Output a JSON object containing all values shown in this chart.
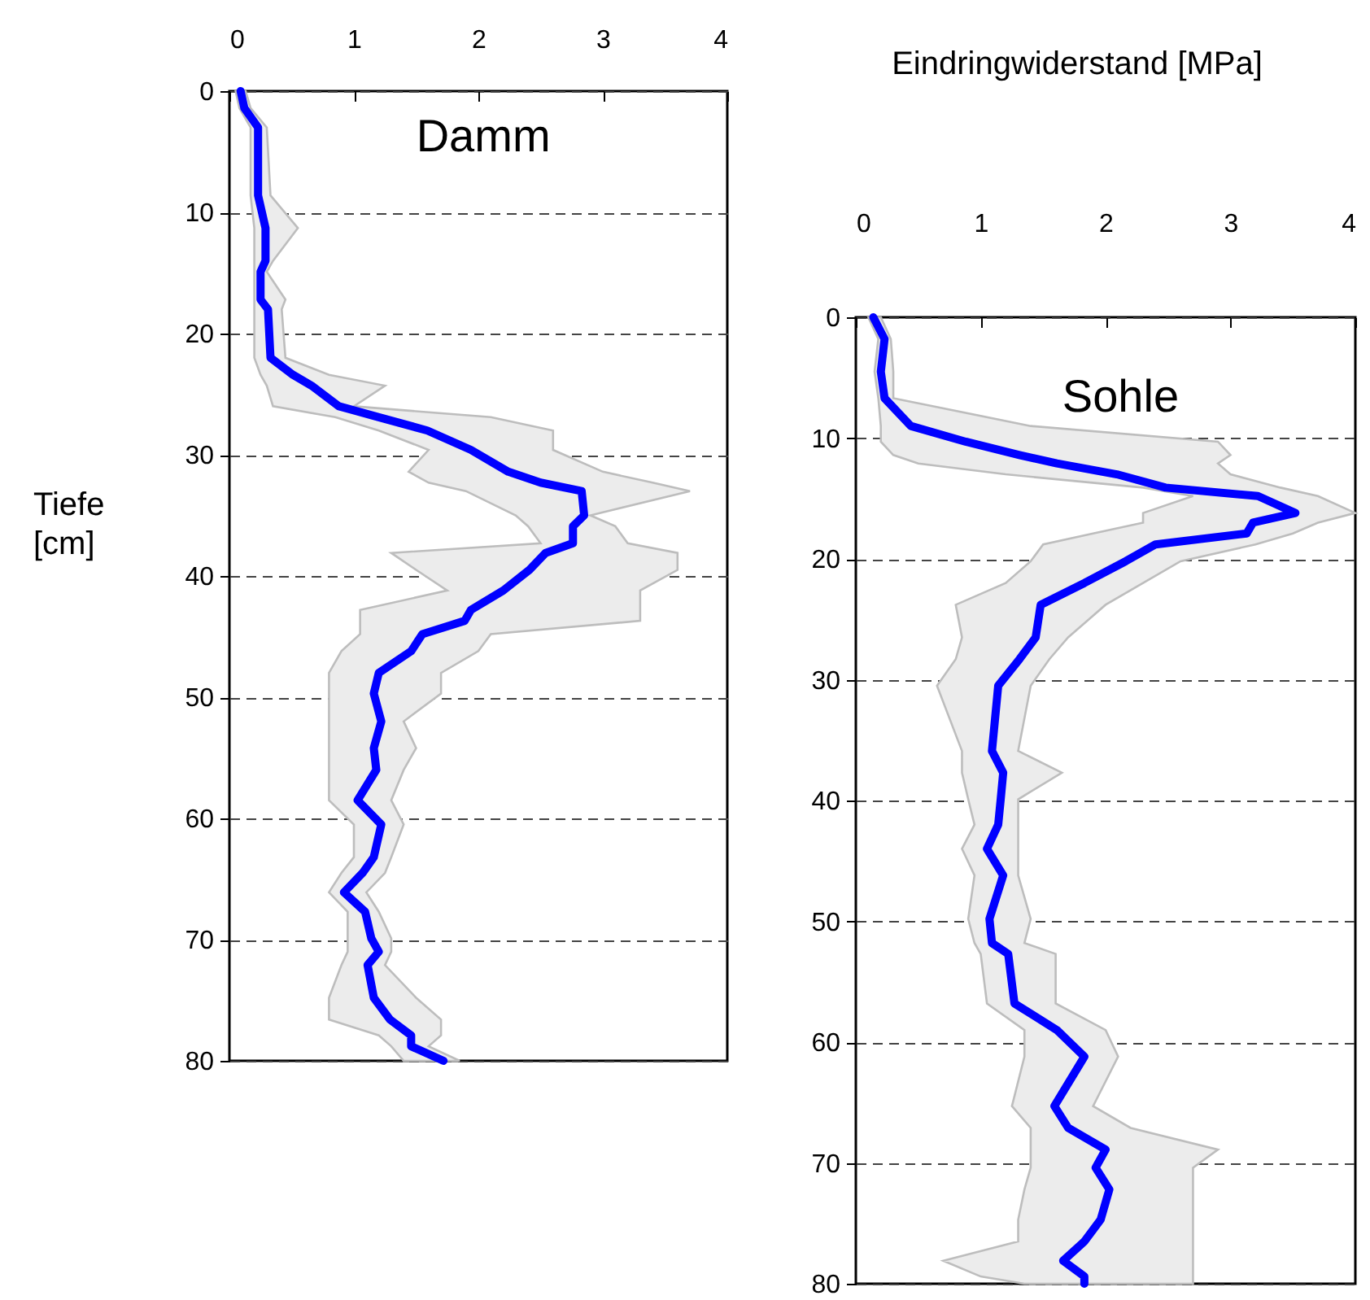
{
  "chart_data": [
    {
      "type": "line",
      "title": "Damm",
      "ylabel": "Tiefe [cm]",
      "orientation": "horizontal",
      "x": [
        0,
        1.4,
        3,
        8.6,
        11.3,
        14,
        14.9,
        17.2,
        18,
        22,
        23.4,
        24.3,
        26,
        26.9,
        28,
        29.6,
        31.4,
        32.3,
        33,
        35,
        35.9,
        37.3,
        38.1,
        39.5,
        41.2,
        42.8,
        43.7,
        44.8,
        46.2,
        48,
        49.7,
        52,
        54.2,
        56,
        58.5,
        60.5,
        63.2,
        64.5,
        66.1,
        67.7,
        69.9,
        71,
        72.1,
        74.8,
        76.6,
        77.9,
        78.8,
        80
      ],
      "series": [
        {
          "color": "#0000ff",
          "values": [
            0.09,
            0.12,
            0.23,
            0.23,
            0.29,
            0.29,
            0.25,
            0.25,
            0.31,
            0.33,
            0.51,
            0.66,
            0.88,
            1.2,
            1.59,
            1.94,
            2.24,
            2.5,
            2.83,
            2.85,
            2.76,
            2.76,
            2.54,
            2.41,
            2.2,
            1.94,
            1.89,
            1.55,
            1.46,
            1.2,
            1.16,
            1.22,
            1.16,
            1.18,
            1.03,
            1.22,
            1.16,
            1.07,
            0.92,
            1.09,
            1.14,
            1.2,
            1.11,
            1.16,
            1.29,
            1.46,
            1.46,
            1.72
          ],
          "lower": [
            0.05,
            0.08,
            0.17,
            0.17,
            0.2,
            0.2,
            0.2,
            0.2,
            0.2,
            0.2,
            0.25,
            0.3,
            0.35,
            0.85,
            1.2,
            1.6,
            1.44,
            1.6,
            1.9,
            2.3,
            2.4,
            2.5,
            1.3,
            1.5,
            1.75,
            1.05,
            1.05,
            1.05,
            0.9,
            0.8,
            0.8,
            0.8,
            0.8,
            0.8,
            0.8,
            1.0,
            1.0,
            0.9,
            0.8,
            0.95,
            0.95,
            0.95,
            0.9,
            0.8,
            0.8,
            1.2,
            1.3,
            1.4
          ],
          "upper": [
            0.13,
            0.17,
            0.3,
            0.33,
            0.55,
            0.35,
            0.3,
            0.45,
            0.42,
            0.45,
            0.8,
            1.25,
            1.0,
            2.1,
            2.6,
            2.6,
            3.0,
            3.4,
            3.7,
            2.9,
            3.1,
            3.2,
            3.6,
            3.6,
            3.3,
            3.3,
            3.3,
            2.1,
            2.0,
            1.7,
            1.7,
            1.4,
            1.5,
            1.4,
            1.3,
            1.4,
            1.3,
            1.25,
            1.1,
            1.2,
            1.3,
            1.3,
            1.25,
            1.5,
            1.7,
            1.7,
            1.6,
            1.85
          ]
        }
      ],
      "xlim": [
        0,
        4
      ],
      "xticks": [
        0,
        1,
        2,
        3,
        4
      ],
      "ylim": [
        80,
        0
      ],
      "yticks": [
        0,
        10,
        20,
        30,
        40,
        50,
        60,
        70,
        80
      ],
      "grid": "y"
    },
    {
      "type": "line",
      "title": "Sohle",
      "xlabel": "Eindringwiderstand [MPa]",
      "orientation": "horizontal",
      "x": [
        0,
        1.8,
        4.5,
        6.7,
        9,
        10.3,
        11.4,
        12.1,
        13,
        14.1,
        14.8,
        16.2,
        17,
        17.9,
        18.8,
        20.2,
        22,
        23.8,
        26.5,
        28.3,
        30.5,
        35.9,
        37.7,
        39.9,
        42,
        44,
        46.2,
        49.8,
        51.8,
        52.7,
        56.8,
        59,
        61.2,
        65.3,
        67.1,
        68.9,
        70.4,
        72.2,
        74.7,
        76.5,
        78.1,
        79.4,
        80
      ],
      "series": [
        {
          "color": "#0000ff",
          "values": [
            0.14,
            0.23,
            0.2,
            0.23,
            0.44,
            0.88,
            1.31,
            1.61,
            2.09,
            2.48,
            3.22,
            3.52,
            3.18,
            3.13,
            2.4,
            2.16,
            1.83,
            1.48,
            1.44,
            1.31,
            1.14,
            1.09,
            1.18,
            1.16,
            1.14,
            1.05,
            1.18,
            1.07,
            1.09,
            1.22,
            1.27,
            1.61,
            1.83,
            1.59,
            1.7,
            2.0,
            1.92,
            2.03,
            1.96,
            1.83,
            1.66,
            1.83,
            1.83
          ],
          "lower": [
            0.1,
            0.18,
            0.15,
            0.18,
            0.2,
            0.2,
            0.3,
            0.5,
            1.2,
            2.3,
            2.7,
            2.3,
            2.3,
            1.9,
            1.5,
            1.4,
            1.2,
            0.8,
            0.85,
            0.8,
            0.65,
            0.85,
            0.85,
            0.9,
            0.95,
            0.85,
            0.95,
            0.9,
            0.95,
            1.0,
            1.05,
            1.35,
            1.35,
            1.25,
            1.4,
            1.4,
            1.4,
            1.35,
            1.3,
            1.3,
            0.7,
            1.0,
            1.35
          ],
          "upper": [
            0.2,
            0.28,
            0.3,
            0.3,
            1.4,
            2.9,
            3.0,
            2.9,
            3.0,
            3.4,
            3.7,
            4.0,
            3.7,
            3.5,
            3.2,
            2.6,
            2.3,
            2.0,
            1.7,
            1.55,
            1.4,
            1.3,
            1.65,
            1.3,
            1.3,
            1.3,
            1.3,
            1.4,
            1.35,
            1.6,
            1.6,
            2.0,
            2.1,
            1.9,
            2.2,
            2.9,
            2.7,
            2.7,
            2.7,
            2.7,
            2.7,
            2.7,
            2.7
          ]
        }
      ],
      "xlim": [
        0,
        4
      ],
      "xticks": [
        0,
        1,
        2,
        3,
        4
      ],
      "ylim": [
        80,
        0
      ],
      "yticks": [
        0,
        10,
        20,
        30,
        40,
        50,
        60,
        70,
        80
      ],
      "grid": "y"
    }
  ]
}
